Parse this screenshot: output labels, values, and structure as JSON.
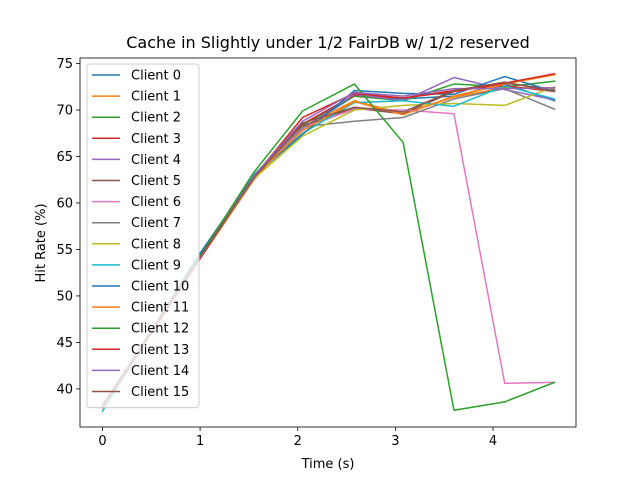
{
  "chart_data": {
    "type": "line",
    "title": "Cache in Slightly under 1/2 FairDB w/ 1/2 reserved",
    "xlabel": "Time (s)",
    "ylabel": "Hit Rate (%)",
    "xlim": [
      -0.23,
      4.85
    ],
    "ylim": [
      35.9,
      75.6
    ],
    "xticks": [
      0,
      1,
      2,
      3,
      4
    ],
    "yticks": [
      40,
      45,
      50,
      55,
      60,
      65,
      70,
      75
    ],
    "grid": false,
    "legend_position": "top-left",
    "x": [
      0,
      1,
      1.55,
      2.05,
      2.58,
      3.08,
      3.6,
      4.12,
      4.63
    ],
    "series": [
      {
        "name": "Client 0",
        "color": "#1f77b4",
        "values": [
          38.0,
          54.3,
          63.0,
          68.0,
          71.5,
          71.2,
          71.5,
          72.8,
          71.0
        ]
      },
      {
        "name": "Client 1",
        "color": "#ff7f0e",
        "values": [
          38.2,
          54.1,
          62.8,
          68.2,
          71.0,
          69.6,
          71.4,
          72.4,
          72.4
        ]
      },
      {
        "name": "Client 2",
        "color": "#2ca02c",
        "values": [
          38.1,
          54.2,
          63.0,
          68.4,
          71.5,
          71.0,
          72.8,
          72.5,
          73.1
        ]
      },
      {
        "name": "Client 3",
        "color": "#d62728",
        "values": [
          38.0,
          54.0,
          62.5,
          68.5,
          71.6,
          71.3,
          72.1,
          72.6,
          72.0
        ]
      },
      {
        "name": "Client 4",
        "color": "#9467bd",
        "values": [
          38.3,
          54.2,
          62.9,
          68.0,
          71.7,
          71.0,
          73.5,
          72.2,
          71.1
        ]
      },
      {
        "name": "Client 5",
        "color": "#8c564b",
        "values": [
          38.1,
          54.1,
          62.7,
          68.3,
          70.2,
          69.6,
          72.0,
          72.9,
          72.2
        ]
      },
      {
        "name": "Client 6",
        "color": "#e377c2",
        "values": [
          38.2,
          54.3,
          62.8,
          68.1,
          70.1,
          70.0,
          69.6,
          40.6,
          40.7
        ]
      },
      {
        "name": "Client 7",
        "color": "#7f7f7f",
        "values": [
          38.0,
          54.2,
          62.9,
          68.2,
          68.8,
          69.2,
          71.2,
          72.3,
          70.1
        ]
      },
      {
        "name": "Client 8",
        "color": "#bcbd22",
        "values": [
          38.1,
          54.0,
          62.6,
          67.2,
          70.0,
          70.5,
          70.7,
          70.5,
          72.5
        ]
      },
      {
        "name": "Client 9",
        "color": "#17becf",
        "values": [
          37.6,
          54.5,
          63.1,
          67.5,
          70.8,
          71.0,
          70.4,
          72.6,
          71.2
        ]
      },
      {
        "name": "Client 10",
        "color": "#1f77b4",
        "values": [
          38.0,
          54.6,
          62.9,
          67.4,
          72.1,
          71.8,
          71.7,
          73.6,
          72.0
        ]
      },
      {
        "name": "Client 11",
        "color": "#ff7f0e",
        "values": [
          38.2,
          54.2,
          62.8,
          67.8,
          70.9,
          69.5,
          71.5,
          72.8,
          73.8
        ]
      },
      {
        "name": "Client 12",
        "color": "#2ca02c",
        "values": [
          38.1,
          54.3,
          63.3,
          69.9,
          72.8,
          66.5,
          37.7,
          38.6,
          40.7
        ]
      },
      {
        "name": "Client 13",
        "color": "#d62728",
        "values": [
          38.0,
          54.0,
          62.8,
          69.2,
          71.8,
          71.3,
          72.0,
          72.9,
          73.9
        ]
      },
      {
        "name": "Client 14",
        "color": "#9467bd",
        "values": [
          38.2,
          54.1,
          62.9,
          68.8,
          71.9,
          71.5,
          72.3,
          72.3,
          72.4
        ]
      },
      {
        "name": "Client 15",
        "color": "#8c564b",
        "values": [
          38.1,
          54.2,
          62.7,
          68.6,
          70.3,
          69.8,
          72.1,
          73.0,
          72.0
        ]
      }
    ]
  }
}
